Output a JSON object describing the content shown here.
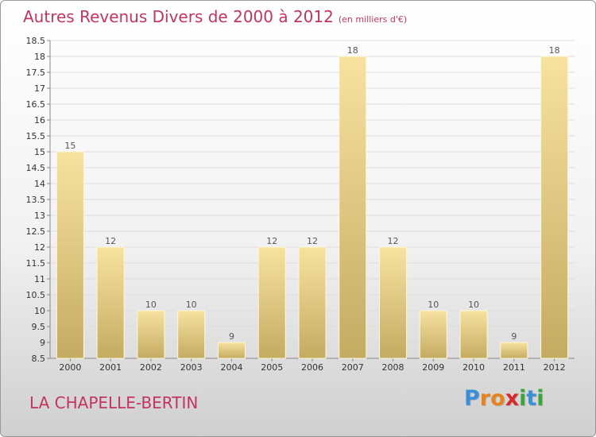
{
  "chart_data": {
    "type": "bar",
    "title": "Autres Revenus Divers de 2000 à 2012",
    "subtitle": "(en milliers d'€)",
    "categories": [
      "2000",
      "2001",
      "2002",
      "2003",
      "2004",
      "2005",
      "2006",
      "2007",
      "2008",
      "2009",
      "2010",
      "2011",
      "2012"
    ],
    "values": [
      15,
      12,
      10,
      10,
      9,
      12,
      12,
      18,
      12,
      10,
      10,
      9,
      18
    ],
    "data_labels": [
      "15",
      "12",
      "10",
      "10",
      "9",
      "12",
      "12",
      "18",
      "12",
      "10",
      "10",
      "9",
      "18"
    ],
    "y_ticks": [
      "8.5",
      "9",
      "9.5",
      "10",
      "10.5",
      "11",
      "11.5",
      "12",
      "12.5",
      "13",
      "13.5",
      "14",
      "14.5",
      "15",
      "15.5",
      "16",
      "16.5",
      "17",
      "17.5",
      "18",
      "18.5"
    ],
    "ylim": [
      8.5,
      18.5
    ],
    "xlabel": "",
    "ylabel": "",
    "grid": true,
    "legend": "none",
    "colors": {
      "bar_light": "#f7e2a0",
      "bar_dark": "#c4ab62",
      "grid": "#dddddd",
      "title": "#c2355f"
    }
  },
  "footer": {
    "town": "LA CHAPELLE-BERTIN",
    "brand": [
      "P",
      "r",
      "o",
      "x",
      "i",
      "t",
      "i"
    ],
    "brand_colors": [
      "#3b8fd6",
      "#e8821f",
      "#e8821f",
      "#d62a2a",
      "#3aa63a",
      "#3b8fd6",
      "#3aa63a"
    ]
  }
}
